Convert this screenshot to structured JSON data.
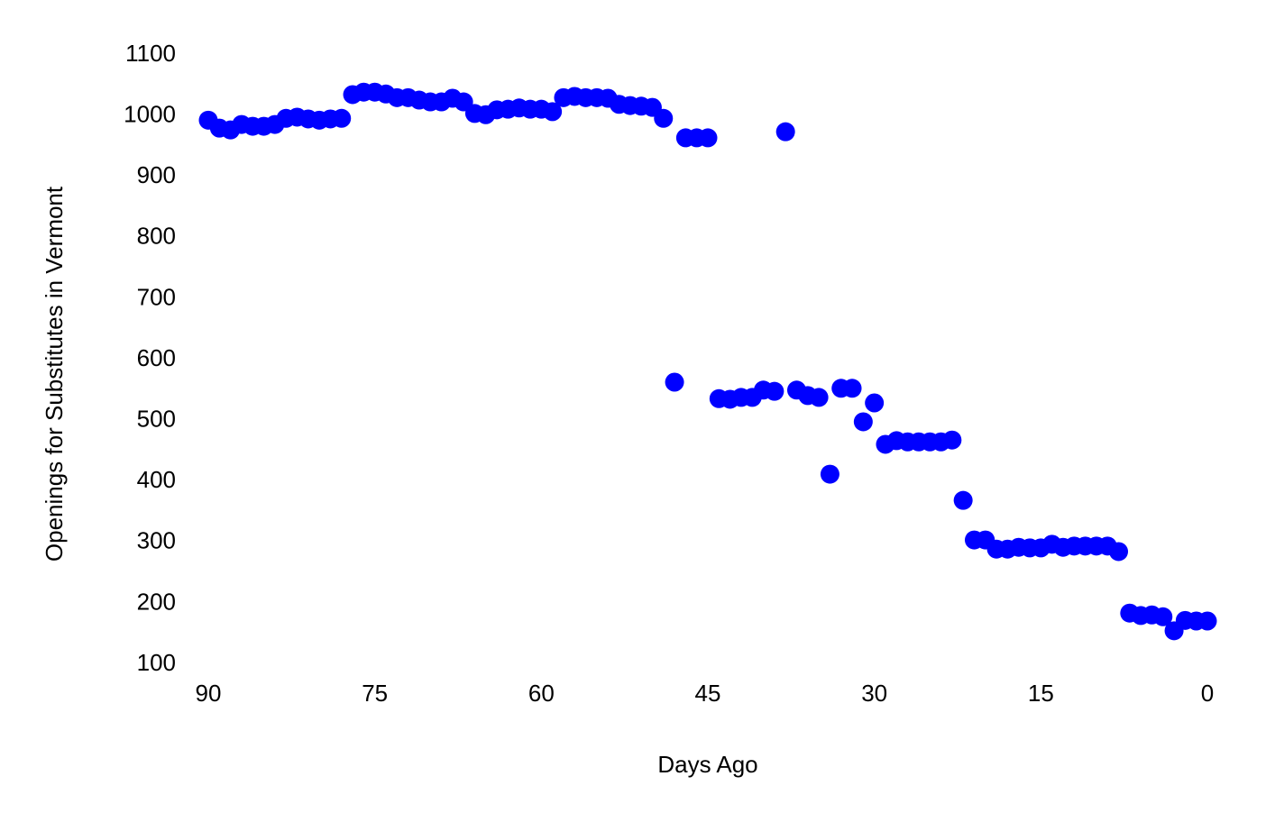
{
  "chart_data": {
    "type": "scatter",
    "xlabel": "Days Ago",
    "ylabel": "Openings for Substitutes in Vermont",
    "xlim": [
      90,
      0
    ],
    "xticks": [
      90,
      75,
      60,
      45,
      30,
      15,
      0
    ],
    "ylim": [
      100,
      1100
    ],
    "yticks": [
      100,
      200,
      300,
      400,
      500,
      600,
      700,
      800,
      900,
      1000,
      1100
    ],
    "grid": false,
    "series": [
      {
        "color": "#0000ff",
        "x": [
          90,
          89,
          88,
          87,
          86,
          85,
          84,
          83,
          82,
          81,
          80,
          79,
          78,
          77,
          76,
          75,
          74,
          73,
          72,
          71,
          70,
          69,
          68,
          67,
          66,
          65,
          64,
          63,
          62,
          61,
          60,
          59,
          58,
          57,
          56,
          55,
          54,
          53,
          52,
          51,
          50,
          49,
          48,
          47,
          46,
          45,
          44,
          43,
          42,
          41,
          40,
          39,
          38,
          37,
          36,
          35,
          34,
          33,
          32,
          31,
          30,
          29,
          28,
          27,
          26,
          25,
          24,
          23,
          22,
          21,
          20,
          19,
          18,
          17,
          16,
          15,
          14,
          13,
          12,
          11,
          10,
          9,
          8,
          7,
          6,
          5,
          4,
          3,
          2,
          1,
          0
        ],
        "values": [
          993,
          980,
          977,
          986,
          983,
          983,
          986,
          996,
          998,
          995,
          993,
          995,
          996,
          1035,
          1039,
          1039,
          1036,
          1030,
          1030,
          1026,
          1023,
          1023,
          1029,
          1023,
          1004,
          1002,
          1010,
          1011,
          1013,
          1011,
          1011,
          1007,
          1030,
          1032,
          1030,
          1030,
          1029,
          1019,
          1017,
          1016,
          1014,
          996,
          563,
          964,
          964,
          964,
          536,
          535,
          538,
          538,
          550,
          548,
          974,
          550,
          541,
          538,
          412,
          553,
          553,
          498,
          529,
          461,
          467,
          465,
          465,
          465,
          465,
          468,
          369,
          304,
          304,
          289,
          289,
          292,
          291,
          291,
          297,
          292,
          294,
          294,
          294,
          294,
          285,
          184,
          180,
          181,
          178,
          155,
          172,
          171,
          171
        ]
      }
    ]
  }
}
